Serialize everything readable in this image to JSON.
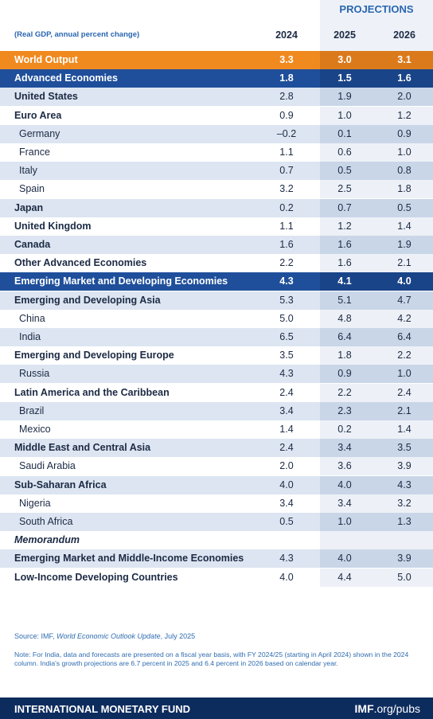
{
  "header": {
    "projections": "PROJECTIONS",
    "units": "(Real GDP, annual percent change)",
    "columns": [
      "2024",
      "2025",
      "2026"
    ]
  },
  "table": {
    "rows": [
      [
        "World Output",
        "3.3",
        "3.0",
        "3.1"
      ],
      [
        "Advanced Economies",
        "1.8",
        "1.5",
        "1.6"
      ],
      [
        "United States",
        "2.8",
        "1.9",
        "2.0"
      ],
      [
        "Euro Area",
        "0.9",
        "1.0",
        "1.2"
      ],
      [
        "Germany",
        "–0.2",
        "0.1",
        "0.9"
      ],
      [
        "France",
        "1.1",
        "0.6",
        "1.0"
      ],
      [
        "Italy",
        "0.7",
        "0.5",
        "0.8"
      ],
      [
        "Spain",
        "3.2",
        "2.5",
        "1.8"
      ],
      [
        "Japan",
        "0.2",
        "0.7",
        "0.5"
      ],
      [
        "United Kingdom",
        "1.1",
        "1.2",
        "1.4"
      ],
      [
        "Canada",
        "1.6",
        "1.6",
        "1.9"
      ],
      [
        "Other Advanced Economies",
        "2.2",
        "1.6",
        "2.1"
      ],
      [
        "Emerging Market and Developing Economies",
        "4.3",
        "4.1",
        "4.0"
      ],
      [
        "Emerging and Developing Asia",
        "5.3",
        "5.1",
        "4.7"
      ],
      [
        "China",
        "5.0",
        "4.8",
        "4.2"
      ],
      [
        "India",
        "6.5",
        "6.4",
        "6.4"
      ],
      [
        "Emerging and Developing Europe",
        "3.5",
        "1.8",
        "2.2"
      ],
      [
        "Russia",
        "4.3",
        "0.9",
        "1.0"
      ],
      [
        "Latin America and the Caribbean",
        "2.4",
        "2.2",
        "2.4"
      ],
      [
        "Brazil",
        "3.4",
        "2.3",
        "2.1"
      ],
      [
        "Mexico",
        "1.4",
        "0.2",
        "1.4"
      ],
      [
        "Middle East and Central Asia",
        "2.4",
        "3.4",
        "3.5"
      ],
      [
        "Saudi Arabia",
        "2.0",
        "3.6",
        "3.9"
      ],
      [
        "Sub-Saharan Africa",
        "4.0",
        "4.0",
        "4.3"
      ],
      [
        "Nigeria",
        "3.4",
        "3.4",
        "3.2"
      ],
      [
        "South Africa",
        "0.5",
        "1.0",
        "1.3"
      ],
      [
        "Memorandum"
      ],
      [
        "Emerging Market and Middle-Income Economies",
        "4.3",
        "4.0",
        "3.9"
      ],
      [
        "Low-Income Developing Countries",
        "4.0",
        "4.4",
        "5.0"
      ]
    ]
  },
  "source": {
    "prefix": "Source: IMF, ",
    "title": "World Economic Outlook Update",
    "suffix": ", July 2025"
  },
  "note": "Note: For India, data and forecasts are presented on a fiscal year basis, with FY 2024/25 (starting in April 2024) shown in the 2024 column. India's growth projections are 6.7 percent in 2025 and 6.4 percent in 2026 based on calendar year.",
  "footer": {
    "org": "INTERNATIONAL MONETARY FUND",
    "site_bold": "IMF",
    "site_rest": ".org/pubs"
  }
}
